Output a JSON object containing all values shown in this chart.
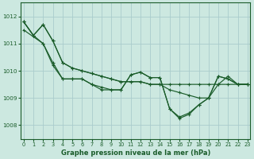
{
  "bg_color": "#cce8e0",
  "grid_color": "#aacccc",
  "line_color": "#1a5c2a",
  "xlabel": "Graphe pression niveau de la mer (hPa)",
  "ylim": [
    1007.5,
    1012.5
  ],
  "yticks": [
    1008,
    1009,
    1010,
    1011,
    1012
  ],
  "xlim": [
    -0.3,
    23.3
  ],
  "xticks": [
    0,
    1,
    2,
    3,
    4,
    5,
    6,
    7,
    8,
    9,
    10,
    11,
    12,
    13,
    14,
    15,
    16,
    17,
    18,
    19,
    20,
    21,
    22,
    23
  ],
  "series": [
    {
      "x": [
        0,
        1,
        2,
        3,
        4,
        5,
        6,
        7,
        8,
        9,
        10,
        11,
        12,
        13,
        14,
        15,
        16,
        17,
        18,
        19,
        20,
        21,
        22,
        23
      ],
      "y": [
        1011.8,
        1011.3,
        1011.7,
        1011.1,
        1010.3,
        1010.1,
        1010.0,
        1009.9,
        1009.8,
        1009.7,
        1009.6,
        1009.6,
        1009.6,
        1009.5,
        1009.5,
        1009.5,
        1009.5,
        1009.5,
        1009.5,
        1009.5,
        1009.5,
        1009.5,
        1009.5,
        1009.5
      ]
    },
    {
      "x": [
        0,
        1,
        2,
        3,
        4,
        5,
        6,
        7,
        8,
        9,
        10,
        11,
        12,
        13,
        14,
        15,
        16,
        17,
        18,
        19,
        20,
        21,
        22,
        23
      ],
      "y": [
        1011.8,
        1011.3,
        1011.7,
        1011.1,
        1010.3,
        1010.1,
        1010.0,
        1009.9,
        1009.8,
        1009.7,
        1009.6,
        1009.6,
        1009.6,
        1009.5,
        1009.5,
        1009.3,
        1009.2,
        1009.1,
        1009.0,
        1009.0,
        1009.5,
        1009.8,
        1009.5,
        1009.5
      ]
    },
    {
      "x": [
        0,
        1,
        2,
        3,
        4,
        5,
        6,
        7,
        8,
        9,
        10,
        11,
        12,
        13,
        14,
        15,
        16,
        17,
        18,
        19,
        20,
        21,
        22,
        23
      ],
      "y": [
        1011.8,
        1011.3,
        1011.0,
        1010.3,
        1009.7,
        1009.7,
        1009.7,
        1009.5,
        1009.4,
        1009.3,
        1009.3,
        1009.85,
        1009.95,
        1009.75,
        1009.75,
        1008.6,
        1008.3,
        1008.45,
        1008.75,
        1009.0,
        1009.8,
        1009.7,
        1009.5,
        1009.5
      ]
    },
    {
      "x": [
        0,
        2,
        3,
        4,
        5,
        6,
        7,
        8,
        9,
        10,
        11,
        12,
        13,
        14,
        15,
        16,
        17,
        18,
        19,
        20,
        21,
        22,
        23
      ],
      "y": [
        1011.5,
        1011.0,
        1010.2,
        1009.7,
        1009.7,
        1009.7,
        1009.5,
        1009.3,
        1009.3,
        1009.3,
        1009.85,
        1009.95,
        1009.75,
        1009.75,
        1008.6,
        1008.25,
        1008.4,
        1008.75,
        1009.0,
        1009.8,
        1009.7,
        1009.5,
        1009.5
      ]
    }
  ]
}
